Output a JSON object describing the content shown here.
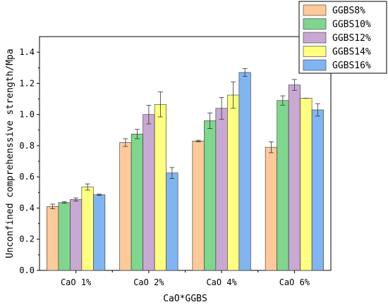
{
  "chart_data": {
    "type": "bar",
    "xlabel": "CaO*GGBS",
    "ylabel": "Unconfined comprehenssive strength/Mpa",
    "categories": [
      "CaO 1%",
      "CaO 2%",
      "CaO 4%",
      "CaO 6%"
    ],
    "ylim": [
      0,
      1.5
    ],
    "yticks": [
      "0.0",
      "0.2",
      "0.4",
      "0.6",
      "0.8",
      "1.0",
      "1.2",
      "1.4"
    ],
    "grid": false,
    "legend_position": "top-right",
    "series": [
      {
        "name": "GGBS8%",
        "color": "#FFC999",
        "values": [
          0.41,
          0.82,
          0.83,
          0.79
        ],
        "errors": [
          0.015,
          0.025,
          0.005,
          0.035
        ]
      },
      {
        "name": "GGBS10%",
        "color": "#7FD68D",
        "values": [
          0.435,
          0.875,
          0.96,
          1.09
        ],
        "errors": [
          0.005,
          0.03,
          0.05,
          0.03
        ]
      },
      {
        "name": "GGBS12%",
        "color": "#C9A8D4",
        "values": [
          0.455,
          1.0,
          1.04,
          1.19
        ],
        "errors": [
          0.01,
          0.06,
          0.07,
          0.035
        ]
      },
      {
        "name": "GGBS14%",
        "color": "#FFFF80",
        "values": [
          0.535,
          1.065,
          1.125,
          1.105
        ],
        "errors": [
          0.02,
          0.08,
          0.085,
          0.0
        ]
      },
      {
        "name": "GGBS16%",
        "color": "#80B5F2",
        "values": [
          0.485,
          0.625,
          1.27,
          1.03
        ],
        "errors": [
          0.004,
          0.035,
          0.025,
          0.04
        ]
      }
    ]
  }
}
